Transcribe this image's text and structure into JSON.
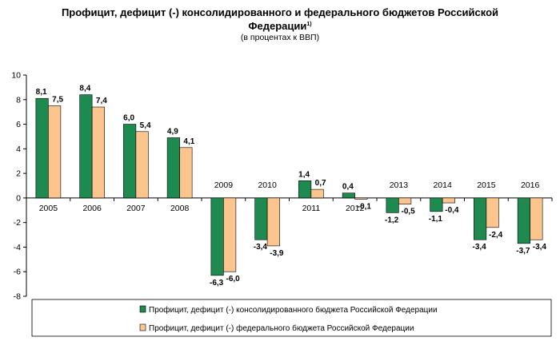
{
  "chart_data": {
    "type": "bar",
    "title_line1": "Профицит, дефицит (-) консолидированного и федерального бюджетов Российской",
    "title_line2": "Федерации",
    "title_footnote": "1)",
    "subtitle": "(в процентах к ВВП)",
    "categories": [
      "2005",
      "2006",
      "2007",
      "2008",
      "2009",
      "2010",
      "2011",
      "2012",
      "2013",
      "2014",
      "2015",
      "2016"
    ],
    "series": [
      {
        "name": "Профицит, дефицит (-) консолидированного бюджета Российской Федерации",
        "values": [
          8.1,
          8.4,
          6.0,
          4.9,
          -6.3,
          -3.4,
          1.4,
          0.4,
          -1.2,
          -1.1,
          -3.4,
          -3.7
        ],
        "labels": [
          "8,1",
          "8,4",
          "6,0",
          "4,9",
          "-6,3",
          "-3,4",
          "1,4",
          "0,4",
          "-1,2",
          "-1,1",
          "-3,4",
          "-3,7"
        ],
        "color": "#1e8a4f"
      },
      {
        "name": "Профицит, дефицит (-) федерального бюджета Российской Федерации",
        "values": [
          7.5,
          7.4,
          5.4,
          4.1,
          -6.0,
          -3.9,
          0.7,
          -0.1,
          -0.5,
          -0.4,
          -2.4,
          -3.4
        ],
        "labels": [
          "7,5",
          "7,4",
          "5,4",
          "4,1",
          "-6,0",
          "-3,9",
          "0,7",
          "-0,1",
          "-0,5",
          "-0,4",
          "-2,4",
          "-3,4"
        ],
        "color": "#fcc58e"
      }
    ],
    "yticks": [
      "10",
      "8",
      "6",
      "4",
      "2",
      "0",
      "-2",
      "-4",
      "-6",
      "-8"
    ],
    "ylim": [
      -8,
      10
    ],
    "grid": false,
    "legend_position": "bottom"
  }
}
